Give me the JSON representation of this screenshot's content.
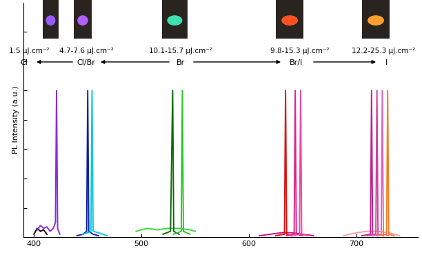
{
  "chart_data": {
    "type": "line",
    "y_label": "PL Intensity (a.u.)",
    "xlim": [
      390,
      757
    ],
    "xticks": [
      400,
      500,
      600,
      700
    ],
    "ylim": [
      0,
      8
    ],
    "yticks": [
      0,
      1,
      2,
      3,
      4,
      5,
      6,
      7
    ],
    "tick_labels": "x",
    "annotations": [
      {
        "fluence": "1.5 μJ.cm⁻²",
        "halide": "Cl"
      },
      {
        "fluence": "4.7-7.6 μJ.cm⁻²",
        "halide": "Cl/Br"
      },
      {
        "fluence": "10.1-15.7 μJ.cm⁻²",
        "halide": "Br"
      },
      {
        "fluence": "9.8-15.3 μJ.cm⁻²",
        "halide": "Br/I"
      },
      {
        "fluence": "12.2-25.3 μJ.cm⁻²",
        "halide": "I"
      }
    ],
    "series": [
      {
        "color": "#000000",
        "x": [
          400,
          403,
          406,
          409,
          412
        ],
        "values": [
          0.1,
          0.3,
          0.2,
          0.25,
          0.1
        ]
      },
      {
        "color": "#8a2be2",
        "x": [
          403,
          406,
          409,
          412,
          415,
          418,
          420,
          421,
          422,
          424
        ],
        "values": [
          0.25,
          0.4,
          0.3,
          0.35,
          0.2,
          0.3,
          0.5,
          5.0,
          0.3,
          0.1
        ]
      },
      {
        "color": "#1020a0",
        "x": [
          440,
          446,
          449,
          450,
          451,
          455,
          460
        ],
        "values": [
          0.05,
          0.1,
          0.2,
          5.0,
          0.2,
          0.1,
          0.05
        ]
      },
      {
        "color": "#00c8e0",
        "x": [
          445,
          450,
          453,
          454,
          455,
          460,
          468
        ],
        "values": [
          0.1,
          0.15,
          0.2,
          5.0,
          0.2,
          0.15,
          0.05
        ]
      },
      {
        "color": "#33dd33",
        "x": [
          495,
          505,
          515,
          525,
          535,
          545,
          550
        ],
        "values": [
          0.2,
          0.3,
          0.25,
          0.3,
          0.3,
          0.25,
          0.2
        ]
      },
      {
        "color": "#0a6a0a",
        "x": [
          520,
          527,
          529,
          530,
          535
        ],
        "values": [
          0.1,
          0.2,
          5.0,
          0.2,
          0.1
        ]
      },
      {
        "color": "#22cc22",
        "x": [
          530,
          537,
          538,
          539,
          545
        ],
        "values": [
          0.1,
          0.2,
          5.0,
          0.2,
          0.1
        ]
      },
      {
        "color": "#cc1188",
        "x": [
          610,
          620,
          630,
          640,
          650,
          660
        ],
        "values": [
          0.05,
          0.1,
          0.15,
          0.15,
          0.1,
          0.05
        ]
      },
      {
        "color": "#dd1111",
        "x": [
          625,
          633,
          634,
          635,
          640
        ],
        "values": [
          0.05,
          0.1,
          5.0,
          0.1,
          0.05
        ]
      },
      {
        "color": "#e0208a",
        "x": [
          635,
          642,
          643,
          644,
          650
        ],
        "values": [
          0.05,
          0.1,
          5.0,
          0.1,
          0.05
        ]
      },
      {
        "color": "#ee44aa",
        "x": [
          640,
          647,
          648,
          649,
          655
        ],
        "values": [
          0.05,
          0.1,
          5.0,
          0.1,
          0.05
        ]
      },
      {
        "color": "#f4a0a0",
        "x": [
          688,
          700,
          710,
          720,
          730,
          740
        ],
        "values": [
          0.05,
          0.15,
          0.2,
          0.2,
          0.15,
          0.05
        ]
      },
      {
        "color": "#c0208a",
        "x": [
          705,
          713,
          714,
          715,
          720
        ],
        "values": [
          0.05,
          0.1,
          5.0,
          0.1,
          0.05
        ]
      },
      {
        "color": "#d040a0",
        "x": [
          710,
          718,
          719,
          720,
          725
        ],
        "values": [
          0.05,
          0.1,
          5.0,
          0.1,
          0.05
        ]
      },
      {
        "color": "#e060c0",
        "x": [
          715,
          723,
          724,
          725,
          730
        ],
        "values": [
          0.05,
          0.1,
          5.0,
          0.1,
          0.05
        ]
      },
      {
        "color": "#f08020",
        "x": [
          720,
          728,
          729,
          730,
          735
        ],
        "values": [
          0.05,
          0.1,
          5.0,
          0.1,
          0.05
        ]
      }
    ]
  }
}
